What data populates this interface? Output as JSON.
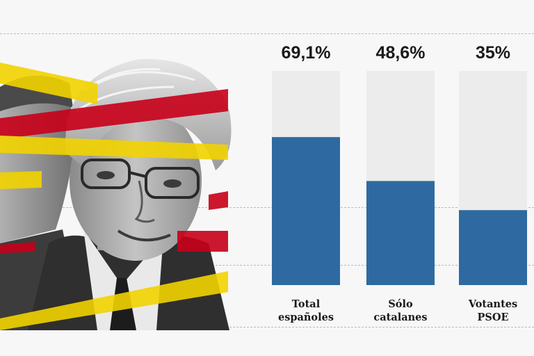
{
  "chart_data": {
    "type": "bar",
    "categories": [
      [
        "Total",
        "españoles"
      ],
      [
        "Sólo",
        "catalanes"
      ],
      [
        "Votantes",
        "PSOE"
      ]
    ],
    "values": [
      69.1,
      48.6,
      35
    ],
    "value_labels": [
      "69,1%",
      "48,6%",
      "35%"
    ],
    "ylim": [
      0,
      100
    ],
    "title": "",
    "xlabel": "",
    "ylabel": "",
    "grid": true
  },
  "colors": {
    "bar_fill": "#2e6aa1",
    "bar_track": "#ececec",
    "catalan_yellow": "#f2d300",
    "catalan_red": "#c8001a"
  },
  "photo": {
    "icon": "portrait-photo-icon"
  }
}
